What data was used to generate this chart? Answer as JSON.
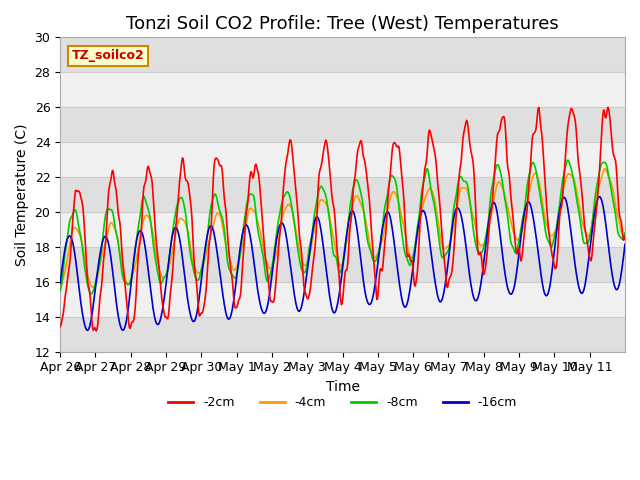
{
  "title": "Tonzi Soil CO2 Profile: Tree (West) Temperatures",
  "xlabel": "Time",
  "ylabel": "Soil Temperature (C)",
  "ylim": [
    12,
    30
  ],
  "n_days": 16,
  "legend_label": "TZ_soilco2",
  "legend_entries": [
    "-2cm",
    "-4cm",
    "-8cm",
    "-16cm"
  ],
  "line_colors": [
    "#ff0000",
    "#ff9900",
    "#00cc00",
    "#0000cc"
  ],
  "xtick_labels": [
    "Apr 26",
    "Apr 27",
    "Apr 28",
    "Apr 29",
    "Apr 30",
    "May 1",
    "May 2",
    "May 3",
    "May 4",
    "May 5",
    "May 6",
    "May 7",
    "May 8",
    "May 9",
    "May 10",
    "May 11"
  ],
  "ytick_values": [
    12,
    14,
    16,
    18,
    20,
    22,
    24,
    26,
    28,
    30
  ],
  "grid_color": "#cccccc",
  "plot_bg_color": "#f0f0f0",
  "band_color": "#d8d8d8",
  "title_fontsize": 13,
  "axis_fontsize": 10,
  "tick_fontsize": 9,
  "legend_fontsize": 9
}
